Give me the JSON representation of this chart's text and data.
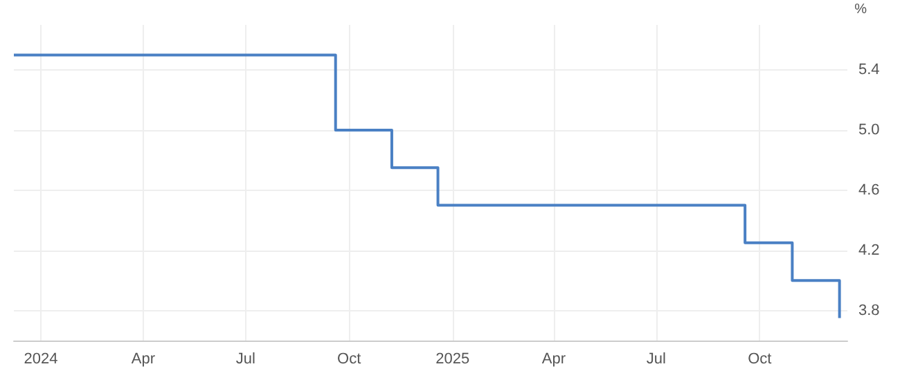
{
  "chart_data": {
    "type": "step",
    "ylabel": "%",
    "x": [
      "2023-12-08",
      "2024-09-19",
      "2024-11-08",
      "2024-12-19",
      "2025-09-18",
      "2025-10-30",
      "2025-12-11"
    ],
    "series": [
      {
        "color": "#4a80c4",
        "values": [
          5.5,
          5.0,
          4.75,
          4.5,
          4.25,
          4.0,
          3.75
        ]
      }
    ],
    "xlim": [
      "2023-12-08",
      "2025-12-18"
    ],
    "xticks": [
      {
        "value": "2024-01-01",
        "label": "2024"
      },
      {
        "value": "2024-04-01",
        "label": "Apr"
      },
      {
        "value": "2024-07-01",
        "label": "Jul"
      },
      {
        "value": "2024-10-01",
        "label": "Oct"
      },
      {
        "value": "2025-01-01",
        "label": "2025"
      },
      {
        "value": "2025-04-01",
        "label": "Apr"
      },
      {
        "value": "2025-07-01",
        "label": "Jul"
      },
      {
        "value": "2025-10-01",
        "label": "Oct"
      }
    ],
    "ylim": [
      3.6,
      5.7
    ],
    "yticks": [
      3.8,
      4.2,
      4.6,
      {
        "value": 5,
        "label": "5.0"
      },
      5.4
    ],
    "grid": true,
    "marker": "none",
    "line_style": "solid"
  }
}
